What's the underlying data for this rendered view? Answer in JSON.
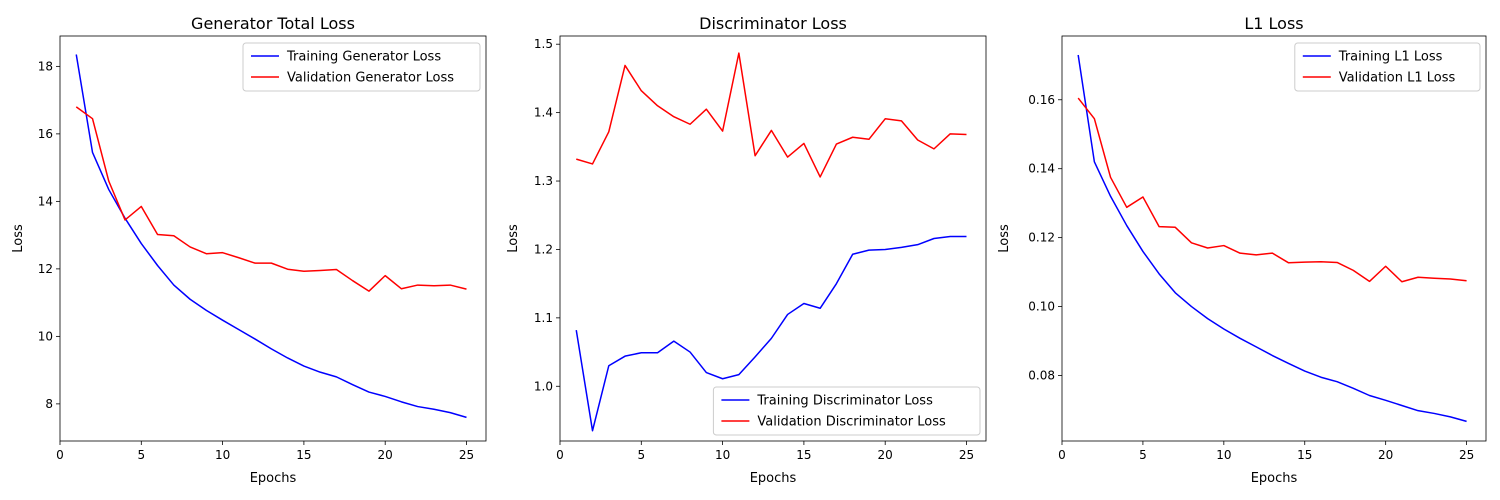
{
  "chart_data": [
    {
      "type": "line",
      "title": "Generator Total Loss",
      "xlabel": "Epochs",
      "ylabel": "Loss",
      "xlim": [
        0,
        26.2
      ],
      "ylim": [
        6.9,
        18.9
      ],
      "xticks": [
        0,
        5,
        10,
        15,
        20,
        25
      ],
      "yticks": [
        8,
        10,
        12,
        14,
        16,
        18
      ],
      "legend": "upper-right",
      "x": [
        1,
        2,
        3,
        4,
        5,
        6,
        7,
        8,
        9,
        10,
        11,
        12,
        13,
        14,
        15,
        16,
        17,
        18,
        19,
        20,
        21,
        22,
        23,
        24,
        25
      ],
      "series": [
        {
          "name": "Training Generator Loss",
          "color": "#0000ff",
          "values": [
            18.35,
            15.45,
            14.35,
            13.5,
            12.75,
            12.1,
            11.52,
            11.1,
            10.77,
            10.48,
            10.2,
            9.92,
            9.63,
            9.36,
            9.12,
            8.94,
            8.8,
            8.57,
            8.35,
            8.22,
            8.06,
            7.92,
            7.84,
            7.74,
            7.6
          ]
        },
        {
          "name": "Validation Generator Loss",
          "color": "#ff0000",
          "values": [
            16.8,
            16.45,
            14.6,
            13.45,
            13.85,
            13.02,
            12.98,
            12.65,
            12.45,
            12.48,
            12.33,
            12.17,
            12.17,
            11.99,
            11.93,
            11.95,
            11.98,
            11.65,
            11.34,
            11.8,
            11.41,
            11.52,
            11.5,
            11.52,
            11.4
          ]
        }
      ]
    },
    {
      "type": "line",
      "title": "Discriminator Loss",
      "xlabel": "Epochs",
      "ylabel": "Loss",
      "xlim": [
        0,
        26.2
      ],
      "ylim": [
        0.92,
        1.512
      ],
      "xticks": [
        0,
        5,
        10,
        15,
        20,
        25
      ],
      "yticks": [
        1.0,
        1.1,
        1.2,
        1.3,
        1.4,
        1.5
      ],
      "ytick_labels": [
        "1.0",
        "1.1",
        "1.2",
        "1.3",
        "1.4",
        "1.5"
      ],
      "legend": "lower-right",
      "x": [
        1,
        2,
        3,
        4,
        5,
        6,
        7,
        8,
        9,
        10,
        11,
        12,
        13,
        14,
        15,
        16,
        17,
        18,
        19,
        20,
        21,
        22,
        23,
        24,
        25
      ],
      "series": [
        {
          "name": "Training Discriminator Loss",
          "color": "#0000ff",
          "values": [
            1.082,
            0.935,
            1.03,
            1.044,
            1.049,
            1.049,
            1.066,
            1.05,
            1.02,
            1.011,
            1.017,
            1.043,
            1.07,
            1.105,
            1.121,
            1.114,
            1.15,
            1.193,
            1.199,
            1.2,
            1.203,
            1.207,
            1.216,
            1.219,
            1.219
          ]
        },
        {
          "name": "Validation Discriminator Loss",
          "color": "#ff0000",
          "values": [
            1.332,
            1.325,
            1.372,
            1.469,
            1.432,
            1.41,
            1.394,
            1.383,
            1.405,
            1.373,
            1.487,
            1.337,
            1.374,
            1.335,
            1.355,
            1.306,
            1.354,
            1.364,
            1.361,
            1.391,
            1.388,
            1.36,
            1.347,
            1.369,
            1.368
          ]
        }
      ]
    },
    {
      "type": "line",
      "title": "L1 Loss",
      "xlabel": "Epochs",
      "ylabel": "Loss",
      "xlim": [
        0,
        26.2
      ],
      "ylim": [
        0.061,
        0.1785
      ],
      "xticks": [
        0,
        5,
        10,
        15,
        20,
        25
      ],
      "yticks": [
        0.08,
        0.1,
        0.12,
        0.14,
        0.16
      ],
      "ytick_labels": [
        "0.08",
        "0.10",
        "0.12",
        "0.14",
        "0.16"
      ],
      "legend": "upper-right",
      "x": [
        1,
        2,
        3,
        4,
        5,
        6,
        7,
        8,
        9,
        10,
        11,
        12,
        13,
        14,
        15,
        16,
        17,
        18,
        19,
        20,
        21,
        22,
        23,
        24,
        25
      ],
      "series": [
        {
          "name": "Training L1 Loss",
          "color": "#0000ff",
          "values": [
            0.173,
            0.142,
            0.132,
            0.1235,
            0.116,
            0.1095,
            0.104,
            0.1,
            0.0965,
            0.0935,
            0.0908,
            0.0883,
            0.0858,
            0.0835,
            0.0813,
            0.0795,
            0.0782,
            0.0763,
            0.0742,
            0.0728,
            0.0713,
            0.0698,
            0.069,
            0.068,
            0.0667
          ]
        },
        {
          "name": "Validation L1 Loss",
          "color": "#ff0000",
          "values": [
            0.1605,
            0.1545,
            0.1375,
            0.1288,
            0.1318,
            0.1232,
            0.123,
            0.1185,
            0.117,
            0.1177,
            0.1155,
            0.115,
            0.1155,
            0.1127,
            0.1129,
            0.113,
            0.1128,
            0.1105,
            0.1073,
            0.1117,
            0.1072,
            0.1085,
            0.1082,
            0.108,
            0.1075
          ]
        }
      ]
    }
  ]
}
